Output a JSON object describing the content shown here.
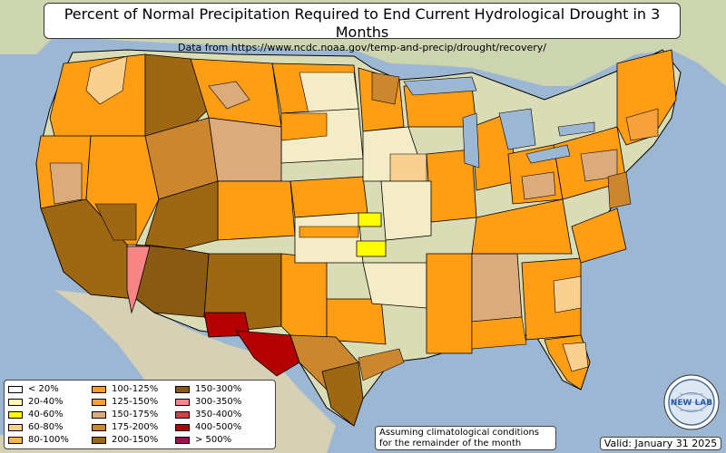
{
  "title": "Percent of Normal Precipitation Required to End Current Hydrological Drought in 3 Months",
  "subtitle": "Data from https://www.ncdc.noaa.gov/temp-and-precip/drought/recovery/",
  "legend": [
    {
      "label": "< 20%",
      "color": "#ffffff"
    },
    {
      "label": "20-40%",
      "color": "#fdfbb2"
    },
    {
      "label": "40-60%",
      "color": "#ffff00"
    },
    {
      "label": "60-80%",
      "color": "#f9d08f"
    },
    {
      "label": "80-100%",
      "color": "#fbb34c"
    },
    {
      "label": "100-125%",
      "color": "#ff9e14"
    },
    {
      "label": "125-150%",
      "color": "#f7a13d"
    },
    {
      "label": "150-175%",
      "color": "#dbab7b"
    },
    {
      "label": "175-200%",
      "color": "#cc862e"
    },
    {
      "label": "200-150%",
      "color": "#9d6713"
    },
    {
      "label": "150-300%",
      "color": "#8a5a12"
    },
    {
      "label": "300-350%",
      "color": "#f78585"
    },
    {
      "label": "350-400%",
      "color": "#cc4444"
    },
    {
      "label": "400-500%",
      "color": "#b30000"
    },
    {
      "label": "> 500%",
      "color": "#a01050"
    }
  ],
  "note": {
    "line1": "Assuming climatological conditions",
    "line2": "for the remainder of the month"
  },
  "valid_date": "Valid: January 31 2025",
  "logo_text": "NEW LAB",
  "colors": {
    "ocean": "#9bb7d4",
    "land": "#d9dcb4",
    "canada": "#cdd5b0",
    "mexico": "#d6d0b4",
    "light": "#f4ecc6",
    "orange": "#ff9e14",
    "tan": "#dbab7b",
    "brown": "#9d6713",
    "darkred": "#b30000",
    "pink": "#f78585",
    "yellow": "#ffff00"
  }
}
